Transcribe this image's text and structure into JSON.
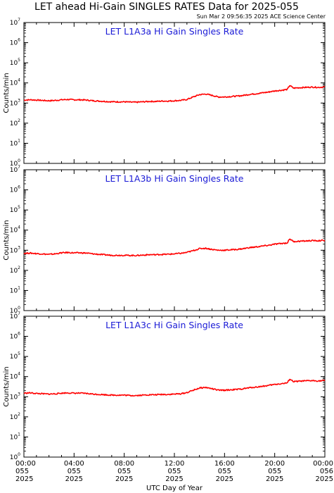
{
  "title": "LET ahead Hi-Gain SINGLES RATES Data for 2025-055",
  "timestamp": "Sun Mar  2 09:56:35 2025 ACE Science Center",
  "xlabel": "UTC Day of Year",
  "ylabel": "Counts/min",
  "colors": {
    "series": "#ff0000",
    "panel_title": "#1a1ad6",
    "axis": "#000000"
  },
  "x_ticks": [
    {
      "hours": 0,
      "time": "00:00",
      "doy": "055",
      "year": "2025"
    },
    {
      "hours": 4,
      "time": "04:00",
      "doy": "055",
      "year": "2025"
    },
    {
      "hours": 8,
      "time": "08:00",
      "doy": "055",
      "year": "2025"
    },
    {
      "hours": 12,
      "time": "12:00",
      "doy": "055",
      "year": "2025"
    },
    {
      "hours": 16,
      "time": "16:00",
      "doy": "055",
      "year": "2025"
    },
    {
      "hours": 20,
      "time": "20:00",
      "doy": "055",
      "year": "2025"
    },
    {
      "hours": 24,
      "time": "00:00",
      "doy": "056",
      "year": "2025"
    }
  ],
  "chart_data": [
    {
      "type": "line",
      "title": "LET L1A3a Hi Gain Singles Rate",
      "ylabel": "Counts/min",
      "yscale": "log",
      "ylim": [
        1,
        10000000
      ],
      "xlim_hours": [
        0,
        24
      ],
      "y_tick_exponents": [
        0,
        1,
        2,
        3,
        4,
        5,
        6,
        7
      ],
      "series": [
        {
          "x_hours": [
            0,
            0.5,
            1,
            1.5,
            2,
            2.5,
            3,
            3.5,
            4,
            4.5,
            5,
            5.5,
            6,
            6.5,
            7,
            7.5,
            8,
            8.5,
            9,
            9.5,
            10,
            10.5,
            11,
            11.5,
            12,
            12.5,
            13,
            13.5,
            14,
            14.5,
            15,
            15.5,
            16,
            16.5,
            17,
            17.5,
            18,
            18.5,
            19,
            19.5,
            20,
            20.5,
            21,
            21.2,
            21.5,
            22,
            22.5,
            23,
            23.5,
            24
          ],
          "values": [
            1400,
            1450,
            1400,
            1350,
            1300,
            1350,
            1450,
            1500,
            1450,
            1450,
            1400,
            1300,
            1250,
            1200,
            1150,
            1150,
            1150,
            1100,
            1100,
            1150,
            1200,
            1200,
            1250,
            1250,
            1300,
            1350,
            1500,
            2000,
            2600,
            2800,
            2400,
            2000,
            2000,
            2100,
            2200,
            2400,
            2700,
            2900,
            3200,
            3500,
            4000,
            4300,
            4700,
            7500,
            5500,
            5800,
            6000,
            6200,
            6000,
            6300
          ]
        }
      ]
    },
    {
      "type": "line",
      "title": "LET L1A3b Hi Gain Singles Rate",
      "ylabel": "Counts/min",
      "yscale": "log",
      "ylim": [
        1,
        10000000
      ],
      "xlim_hours": [
        0,
        24
      ],
      "y_tick_exponents": [
        0,
        1,
        2,
        3,
        4,
        5,
        6,
        7
      ],
      "series": [
        {
          "x_hours": [
            0,
            0.5,
            1,
            1.5,
            2,
            2.5,
            3,
            3.5,
            4,
            4.5,
            5,
            5.5,
            6,
            6.5,
            7,
            7.5,
            8,
            8.5,
            9,
            9.5,
            10,
            10.5,
            11,
            11.5,
            12,
            12.5,
            13,
            13.5,
            14,
            14.5,
            15,
            15.5,
            16,
            16.5,
            17,
            17.5,
            18,
            18.5,
            19,
            19.5,
            20,
            20.5,
            21,
            21.2,
            21.5,
            22,
            22.5,
            23,
            23.5,
            24
          ],
          "values": [
            700,
            720,
            680,
            650,
            620,
            660,
            740,
            770,
            740,
            740,
            720,
            660,
            620,
            590,
            560,
            560,
            560,
            550,
            550,
            570,
            600,
            600,
            620,
            630,
            660,
            700,
            780,
            950,
            1200,
            1250,
            1100,
            1000,
            1000,
            1050,
            1100,
            1200,
            1350,
            1450,
            1600,
            1750,
            2000,
            2150,
            2300,
            3700,
            2700,
            2800,
            2900,
            3000,
            2950,
            3100
          ]
        }
      ]
    },
    {
      "type": "line",
      "title": "LET L1A3c Hi Gain Singles Rate",
      "ylabel": "Counts/min",
      "yscale": "log",
      "ylim": [
        1,
        10000000
      ],
      "xlim_hours": [
        0,
        24
      ],
      "y_tick_exponents": [
        0,
        1,
        2,
        3,
        4,
        5,
        6,
        7
      ],
      "series": [
        {
          "x_hours": [
            0,
            0.5,
            1,
            1.5,
            2,
            2.5,
            3,
            3.5,
            4,
            4.5,
            5,
            5.5,
            6,
            6.5,
            7,
            7.5,
            8,
            8.5,
            9,
            9.5,
            10,
            10.5,
            11,
            11.5,
            12,
            12.5,
            13,
            13.5,
            14,
            14.5,
            15,
            15.5,
            16,
            16.5,
            17,
            17.5,
            18,
            18.5,
            19,
            19.5,
            20,
            20.5,
            21,
            21.2,
            21.5,
            22,
            22.5,
            23,
            23.5,
            24
          ],
          "values": [
            1500,
            1550,
            1450,
            1400,
            1350,
            1400,
            1500,
            1550,
            1500,
            1500,
            1450,
            1350,
            1300,
            1250,
            1200,
            1200,
            1200,
            1150,
            1150,
            1200,
            1250,
            1250,
            1300,
            1300,
            1350,
            1400,
            1600,
            2100,
            2700,
            2900,
            2500,
            2100,
            2100,
            2200,
            2300,
            2500,
            2800,
            3000,
            3300,
            3600,
            4100,
            4400,
            4800,
            7600,
            5600,
            5900,
            6100,
            6300,
            6100,
            6400
          ]
        }
      ]
    }
  ]
}
